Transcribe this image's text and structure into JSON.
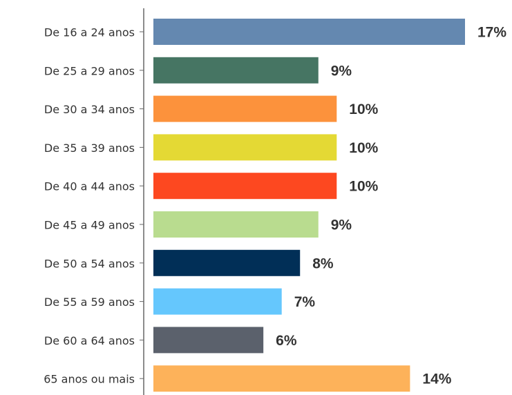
{
  "chart_data": {
    "type": "bar",
    "orientation": "horizontal",
    "categories": [
      "De 16 a 24 anos",
      "De 25 a 29 anos",
      "De 30 a 34 anos",
      "De 35 a 39 anos",
      "De 40 a 44 anos",
      "De 45 a 49 anos",
      "De 50 a 54 anos",
      "De 55 a 59 anos",
      "De 60 a 64 anos",
      "65 anos ou mais"
    ],
    "values": [
      17,
      9,
      10,
      10,
      10,
      9,
      8,
      7,
      6,
      14
    ],
    "value_labels": [
      "17%",
      "9%",
      "10%",
      "10%",
      "10%",
      "9%",
      "8%",
      "7%",
      "6%",
      "14%"
    ],
    "colors": [
      "#6488b0",
      "#467563",
      "#fc923c",
      "#e4d934",
      "#fd4820",
      "#b9dc8f",
      "#012f57",
      "#65c7fd",
      "#5b616c",
      "#fdb25a"
    ]
  }
}
